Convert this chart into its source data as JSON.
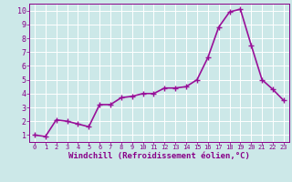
{
  "x": [
    0,
    1,
    2,
    3,
    4,
    5,
    6,
    7,
    8,
    9,
    10,
    11,
    12,
    13,
    14,
    15,
    16,
    17,
    18,
    19,
    20,
    21,
    22,
    23
  ],
  "y": [
    1.0,
    0.9,
    2.1,
    2.0,
    1.8,
    1.6,
    3.2,
    3.2,
    3.7,
    3.8,
    4.0,
    4.0,
    4.4,
    4.4,
    4.5,
    5.0,
    6.6,
    8.8,
    9.9,
    10.1,
    7.5,
    5.0,
    4.3,
    3.5
  ],
  "line_color": "#991199",
  "marker": "+",
  "marker_size": 4,
  "bg_color": "#cce8e8",
  "grid_color": "#ffffff",
  "xlabel": "Windchill (Refroidissement éolien,°C)",
  "xlim": [
    -0.5,
    23.5
  ],
  "ylim": [
    0.5,
    10.5
  ],
  "yticks": [
    1,
    2,
    3,
    4,
    5,
    6,
    7,
    8,
    9,
    10
  ],
  "xticks": [
    0,
    1,
    2,
    3,
    4,
    5,
    6,
    7,
    8,
    9,
    10,
    11,
    12,
    13,
    14,
    15,
    16,
    17,
    18,
    19,
    20,
    21,
    22,
    23
  ],
  "tick_color": "#880088",
  "label_color": "#880088",
  "line_width": 1.2,
  "xlabel_fontsize": 6.5,
  "tick_fontsize_x": 5.0,
  "tick_fontsize_y": 6.0
}
